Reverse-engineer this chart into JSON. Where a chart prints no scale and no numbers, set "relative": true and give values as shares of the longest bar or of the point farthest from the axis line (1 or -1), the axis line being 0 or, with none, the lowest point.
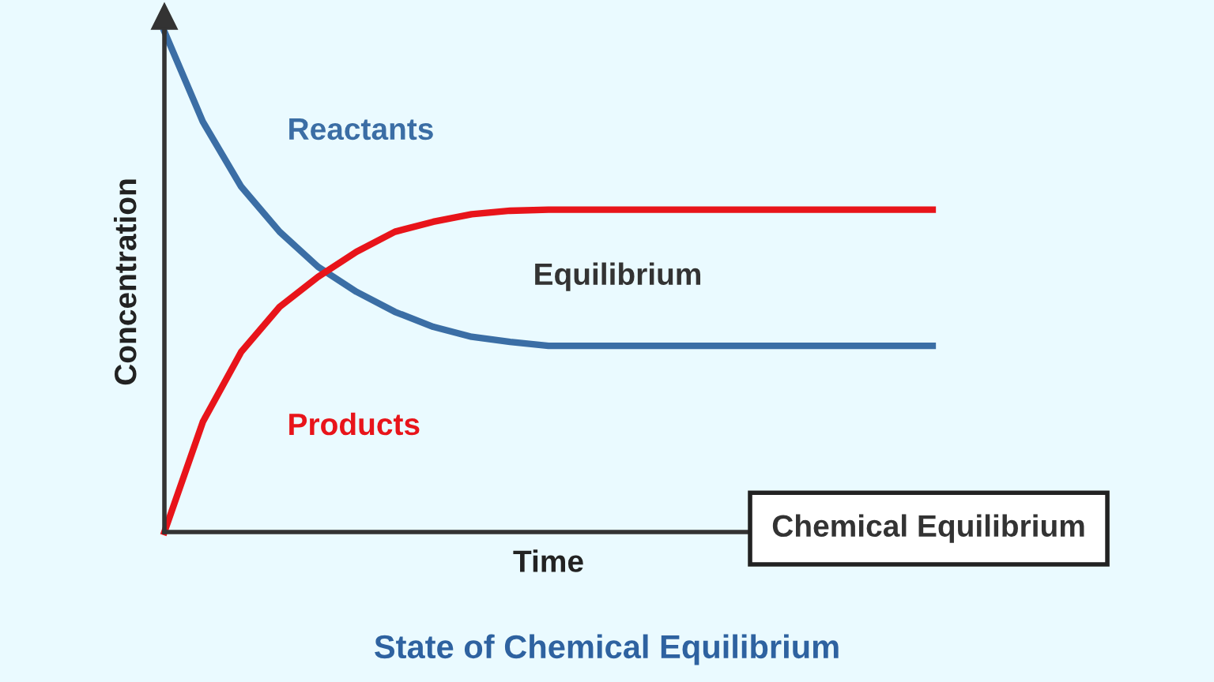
{
  "chart_data": {
    "type": "line",
    "title": "State of Chemical Equilibrium",
    "xlabel": "Time",
    "ylabel": "Concentration",
    "relative": true,
    "categories": [
      null,
      null,
      null,
      null,
      null,
      null,
      null,
      null,
      null,
      null,
      null,
      null,
      null,
      null,
      null,
      null,
      null,
      null,
      null,
      null,
      null
    ],
    "series": [
      {
        "name": "Reactants",
        "color": "#3b6ea5",
        "values": [
          1.0,
          0.82,
          0.69,
          0.6,
          0.53,
          0.48,
          0.44,
          0.41,
          0.39,
          0.38,
          0.372,
          0.372,
          0.372,
          0.372,
          0.372,
          0.372,
          0.372,
          0.372,
          0.372,
          0.372,
          0.372
        ]
      },
      {
        "name": "Products",
        "color": "#e8141a",
        "values": [
          0.0,
          0.22,
          0.36,
          0.45,
          0.51,
          0.56,
          0.6,
          0.62,
          0.635,
          0.642,
          0.644,
          0.644,
          0.644,
          0.644,
          0.644,
          0.644,
          0.644,
          0.644,
          0.644,
          0.644,
          0.644
        ]
      }
    ],
    "annotations": [
      "Equilibrium",
      "Chemical Equilibrium"
    ],
    "legend": false,
    "marker": "none",
    "line_style": "solid"
  }
}
